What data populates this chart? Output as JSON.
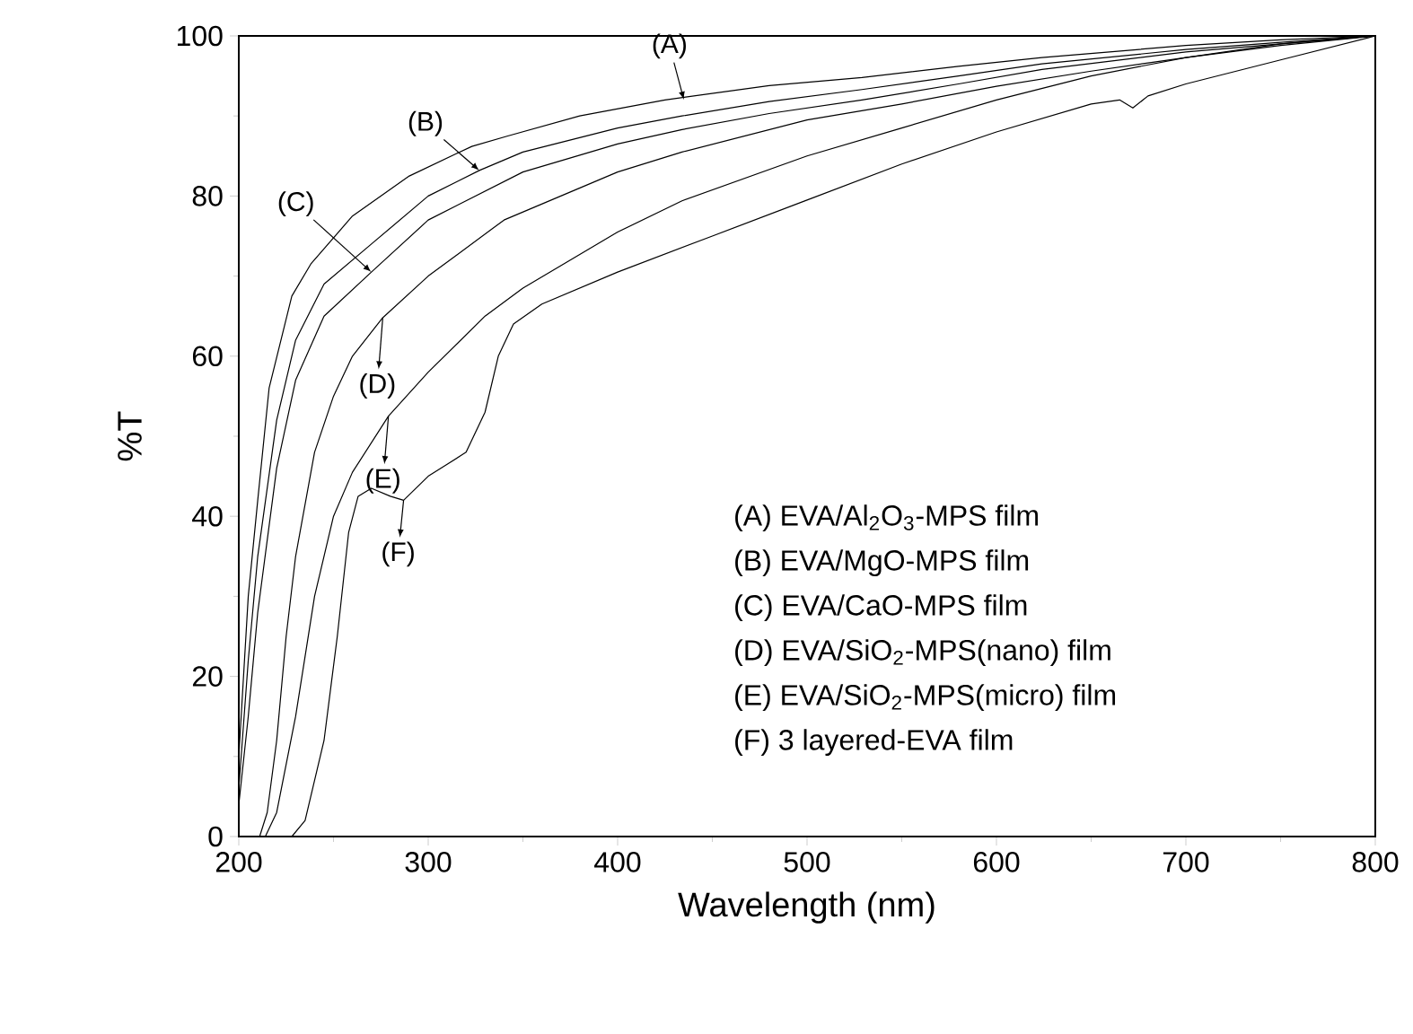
{
  "chart_data": {
    "type": "line",
    "xlabel": "Wavelength (nm)",
    "ylabel": "%T",
    "xlim": [
      200,
      800
    ],
    "ylim": [
      0,
      100
    ],
    "xticks": [
      200,
      300,
      400,
      500,
      600,
      700,
      800
    ],
    "yticks": [
      0,
      20,
      40,
      60,
      80,
      100
    ],
    "grid": false,
    "marker": "none",
    "line_style": "solid",
    "series": [
      {
        "color": "#000000",
        "x": [
          200,
          205,
          210,
          216,
          228,
          238,
          260,
          290,
          323,
          342,
          380,
          425,
          480,
          529,
          580,
          624,
          700,
          750,
          800
        ],
        "values": [
          10,
          30,
          42,
          56,
          67.5,
          71.5,
          77.5,
          82.5,
          86.2,
          87.5,
          90,
          92,
          93.8,
          94.8,
          96.2,
          97.3,
          98.8,
          99.5,
          100
        ]
      },
      {
        "color": "#000000",
        "x": [
          200,
          205,
          210,
          220,
          230,
          245,
          270,
          300,
          327,
          350,
          400,
          434,
          480,
          529,
          580,
          624,
          700,
          750,
          800
        ],
        "values": [
          6,
          22,
          35,
          52,
          62,
          69,
          74,
          80,
          83.2,
          85.5,
          88.5,
          90,
          91.8,
          93.3,
          95,
          96.5,
          98.3,
          99.2,
          100
        ]
      },
      {
        "color": "#000000",
        "x": [
          200,
          205,
          210,
          220,
          230,
          245,
          270,
          300,
          350,
          400,
          434,
          480,
          529,
          580,
          624,
          700,
          750,
          800
        ],
        "values": [
          4,
          15,
          28,
          46,
          57,
          65,
          70.5,
          77,
          83,
          86.5,
          88.3,
          90.3,
          92,
          94,
          95.8,
          98,
          99,
          100
        ]
      },
      {
        "color": "#000000",
        "x": [
          211,
          215,
          220,
          225,
          230,
          240,
          250,
          260,
          276,
          300,
          340,
          400,
          434,
          500,
          550,
          600,
          650,
          700,
          750,
          800
        ],
        "values": [
          0,
          3,
          12,
          25,
          35,
          48,
          55,
          60,
          64.8,
          70,
          77,
          83,
          85.5,
          89.5,
          91.5,
          93.7,
          95.6,
          97.3,
          98.8,
          100
        ]
      },
      {
        "color": "#000000",
        "x": [
          214,
          220,
          230,
          240,
          250,
          260,
          279,
          300,
          330,
          350,
          400,
          434,
          500,
          550,
          600,
          650,
          700,
          750,
          800
        ],
        "values": [
          0,
          3,
          15,
          30,
          40,
          45.5,
          52.5,
          58,
          65,
          68.5,
          75.5,
          79.4,
          85,
          88.5,
          92,
          95,
          97.3,
          99,
          100
        ]
      },
      {
        "color": "#000000",
        "x": [
          228,
          235,
          245,
          252,
          258,
          263,
          270,
          280,
          287,
          300,
          310,
          320,
          330,
          337,
          345,
          360,
          400,
          450,
          500,
          550,
          600,
          650,
          665,
          672,
          680,
          700,
          750,
          800
        ],
        "values": [
          0,
          2,
          12,
          25,
          38,
          42.5,
          43.5,
          42.5,
          42,
          45,
          46.5,
          48,
          53,
          60,
          64,
          66.5,
          70.5,
          75,
          79.5,
          84,
          88,
          91.5,
          92,
          91,
          92.5,
          94,
          97,
          100
        ]
      }
    ],
    "annotations": [
      {
        "text": "(A)",
        "x": 435,
        "y": 92
      },
      {
        "text": "(B)",
        "x": 327,
        "y": 83.2
      },
      {
        "text": "(C)",
        "x": 270,
        "y": 70.5
      },
      {
        "text": "(D)",
        "x": 276,
        "y": 64.8
      },
      {
        "text": "(E)",
        "x": 279,
        "y": 52.5
      },
      {
        "text": "(F)",
        "x": 287,
        "y": 42
      },
      "(A) EVA/Al$_{2}$O$_{3}$-MPS film",
      "(B) EVA/MgO-MPS film",
      "(C) EVA/CaO-MPS film",
      "(D) EVA/SiO$_{2}$-MPS(nano) film",
      "(E) EVA/SiO$_{2}$-MPS(micro) film",
      "(F) 3 layered-EVA film"
    ]
  }
}
